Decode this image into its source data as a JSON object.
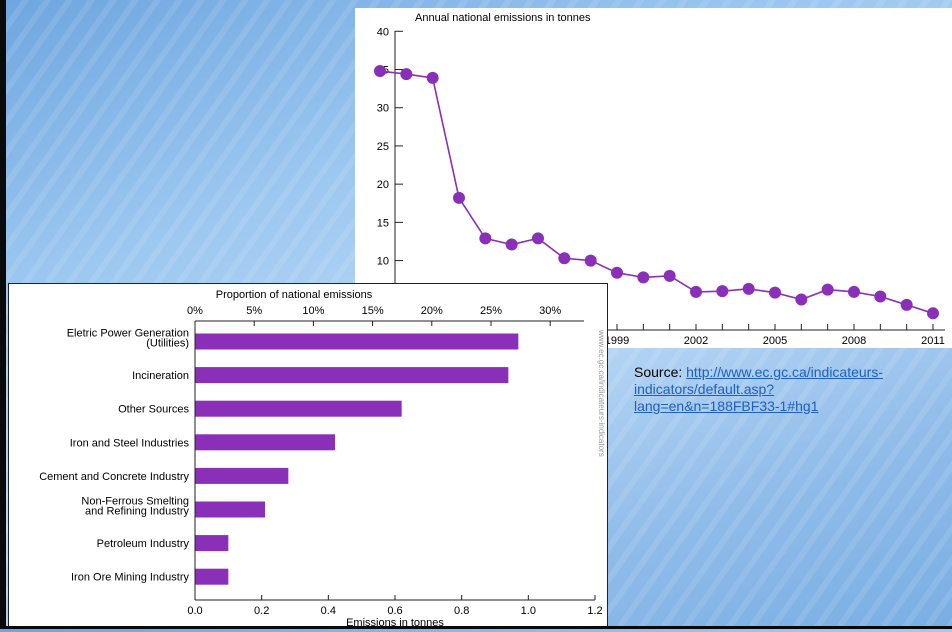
{
  "colors": {
    "series": "#8a2fb8",
    "axis": "#222222",
    "link": "#1f5fbf"
  },
  "chart_data": [
    {
      "type": "line",
      "title": "Annual national emissions in tonnes",
      "x": [
        1990,
        1991,
        1992,
        1993,
        1994,
        1995,
        1996,
        1997,
        1998,
        1999,
        2000,
        2001,
        2002,
        2003,
        2004,
        2005,
        2006,
        2007,
        2008,
        2009,
        2010,
        2011
      ],
      "values": [
        34.8,
        34.4,
        33.9,
        18.2,
        12.9,
        12.1,
        12.9,
        10.3,
        10.0,
        8.4,
        7.8,
        8.0,
        5.9,
        6.0,
        6.3,
        5.8,
        4.9,
        6.2,
        5.9,
        5.3,
        4.2,
        3.1
      ],
      "yticks": [
        10,
        15,
        20,
        25,
        30,
        35,
        40
      ],
      "xtick_labels": [
        "1999",
        "2002",
        "2005",
        "2008",
        "2011"
      ],
      "ylim": [
        0,
        40
      ]
    },
    {
      "type": "bar",
      "orientation": "horizontal",
      "categories": [
        [
          "Eletric Power Generation",
          "(Utilities)"
        ],
        [
          "Incineration"
        ],
        [
          "Other Sources"
        ],
        [
          "Iron and Steel Industries"
        ],
        [
          "Cement and Concrete Industry"
        ],
        [
          "Non-Ferrous Smelting",
          "and Refining Industry"
        ],
        [
          "Petroleum Industry"
        ],
        [
          "Iron Ore Mining Industry"
        ]
      ],
      "values": [
        0.97,
        0.94,
        0.62,
        0.42,
        0.28,
        0.21,
        0.1,
        0.1
      ],
      "xlabel": "Emissions in tonnes",
      "xlim": [
        0,
        1.2
      ],
      "xticks": [
        "0.0",
        "0.2",
        "0.4",
        "0.6",
        "0.8",
        "1.0",
        "1.2"
      ],
      "top_axis_label": "Proportion of national emissions",
      "top_ticks": [
        "0%",
        "5%",
        "10%",
        "15%",
        "20%",
        "25%",
        "30%"
      ],
      "watermark": "www.ec.gc.ca/indicateurs-indicators"
    }
  ],
  "source": {
    "prefix": "Source: ",
    "link_text": "http://www.ec.gc.ca/indicateurs-indicators/default.asp?lang=en&n=188FBF33-1#hg1"
  }
}
